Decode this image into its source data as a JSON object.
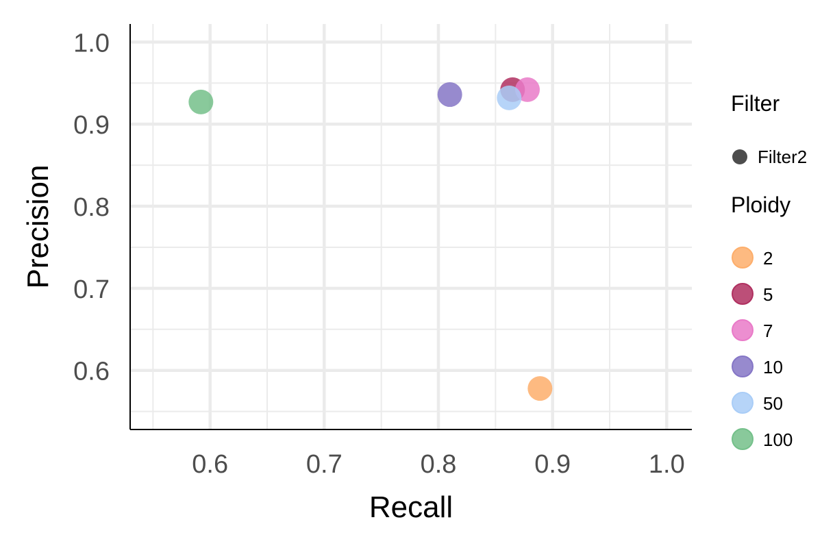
{
  "chart_data": {
    "type": "scatter",
    "xlabel": "Recall",
    "ylabel": "Precision",
    "xlim": [
      0.53,
      1.022
    ],
    "ylim": [
      0.528,
      1.022
    ],
    "x_ticks": [
      "0.6",
      "0.7",
      "0.8",
      "0.9",
      "1.0"
    ],
    "y_ticks": [
      "0.6",
      "0.7",
      "0.8",
      "0.9",
      "1.0"
    ],
    "grid": true,
    "legend_position": "right",
    "legends": [
      {
        "title": "Filter",
        "shape": "circle",
        "entries": [
          {
            "label": "Filter2",
            "color": "#4d4d4d"
          }
        ]
      },
      {
        "title": "Ploidy",
        "shape": "circle",
        "entries": [
          {
            "label": "2",
            "color": "#fdae6b"
          },
          {
            "label": "5",
            "color": "#b03060"
          },
          {
            "label": "7",
            "color": "#e97ac8"
          },
          {
            "label": "10",
            "color": "#8576c6"
          },
          {
            "label": "50",
            "color": "#a9cdf7"
          },
          {
            "label": "100",
            "color": "#74c08a"
          }
        ]
      }
    ],
    "series": [
      {
        "name": "2",
        "color": "#fdae6b",
        "points": [
          {
            "x": 0.889,
            "y": 0.578
          }
        ]
      },
      {
        "name": "5",
        "color": "#b03060",
        "points": [
          {
            "x": 0.865,
            "y": 0.942
          }
        ]
      },
      {
        "name": "7",
        "color": "#e97ac8",
        "points": [
          {
            "x": 0.878,
            "y": 0.942
          }
        ]
      },
      {
        "name": "10",
        "color": "#8576c6",
        "points": [
          {
            "x": 0.81,
            "y": 0.936
          }
        ]
      },
      {
        "name": "50",
        "color": "#a9cdf7",
        "points": [
          {
            "x": 0.862,
            "y": 0.932
          }
        ]
      },
      {
        "name": "100",
        "color": "#74c08a",
        "points": [
          {
            "x": 0.592,
            "y": 0.927
          }
        ]
      }
    ]
  }
}
